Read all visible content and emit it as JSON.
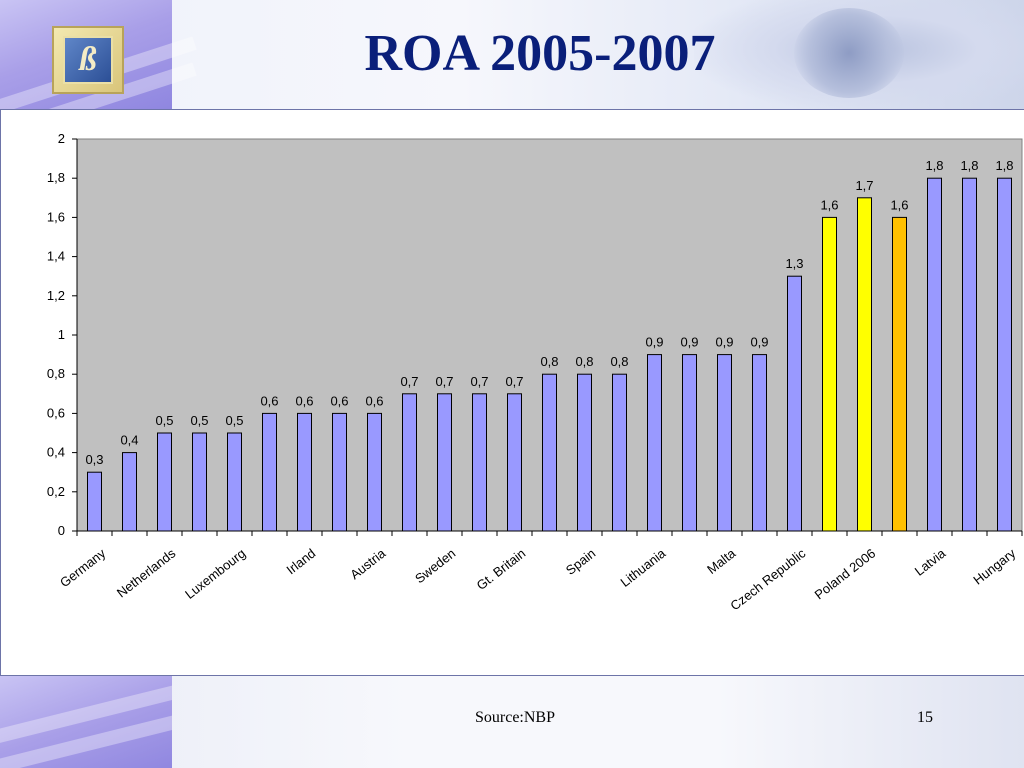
{
  "slide": {
    "title": "ROA 2005-2007",
    "source": "Source:NBP",
    "page_number": "15",
    "logo_letter": "ß"
  },
  "colors": {
    "bar_default": "#9999ff",
    "bar_poland": "#ffff00",
    "bar_highlight": "#ffc000",
    "plot_background": "#c0c0c0",
    "title": "#0a1f7a"
  },
  "chart_data": {
    "type": "bar",
    "title": "",
    "xlabel": "",
    "ylabel": "",
    "ylim": [
      0,
      2
    ],
    "yticks": [
      0,
      0.2,
      0.4,
      0.6,
      0.8,
      1,
      1.2,
      1.4,
      1.6,
      1.8,
      2
    ],
    "ytick_labels": [
      "0",
      "0,2",
      "0,4",
      "0,6",
      "0,8",
      "1",
      "1,2",
      "1,4",
      "1,6",
      "1,8",
      "2"
    ],
    "grid": false,
    "legend": "none",
    "values": [
      0.3,
      0.4,
      0.5,
      0.5,
      0.5,
      0.6,
      0.6,
      0.6,
      0.6,
      0.7,
      0.7,
      0.7,
      0.7,
      0.8,
      0.8,
      0.8,
      0.9,
      0.9,
      0.9,
      0.9,
      1.3,
      1.6,
      1.7,
      1.6,
      1.8,
      1.8,
      1.8
    ],
    "value_labels": [
      "0,3",
      "0,4",
      "0,5",
      "0,5",
      "0,5",
      "0,6",
      "0,6",
      "0,6",
      "0,6",
      "0,7",
      "0,7",
      "0,7",
      "0,7",
      "0,8",
      "0,8",
      "0,8",
      "0,9",
      "0,9",
      "0,9",
      "0,9",
      "1,3",
      "1,6",
      "1,7",
      "1,6",
      "1,8",
      "1,8",
      "1,8"
    ],
    "bar_color_keys": [
      "bar_default",
      "bar_default",
      "bar_default",
      "bar_default",
      "bar_default",
      "bar_default",
      "bar_default",
      "bar_default",
      "bar_default",
      "bar_default",
      "bar_default",
      "bar_default",
      "bar_default",
      "bar_default",
      "bar_default",
      "bar_default",
      "bar_default",
      "bar_default",
      "bar_default",
      "bar_default",
      "bar_default",
      "bar_poland",
      "bar_poland",
      "bar_highlight",
      "bar_default",
      "bar_default",
      "bar_default"
    ],
    "category_labels": [
      {
        "bar": 1,
        "label": "Germany"
      },
      {
        "bar": 3,
        "label": "Netherlands"
      },
      {
        "bar": 5,
        "label": "Luxembourg"
      },
      {
        "bar": 7,
        "label": "Irland"
      },
      {
        "bar": 9,
        "label": "Austria"
      },
      {
        "bar": 11,
        "label": "Sweden"
      },
      {
        "bar": 13,
        "label": "Gt. Britain"
      },
      {
        "bar": 15,
        "label": "Spain"
      },
      {
        "bar": 17,
        "label": "Lithuania"
      },
      {
        "bar": 19,
        "label": "Malta"
      },
      {
        "bar": 21,
        "label": "Czech Republic"
      },
      {
        "bar": 23,
        "label": "Poland 2006"
      },
      {
        "bar": 25,
        "label": "Latvia"
      },
      {
        "bar": 27,
        "label": "Hungary"
      }
    ]
  }
}
